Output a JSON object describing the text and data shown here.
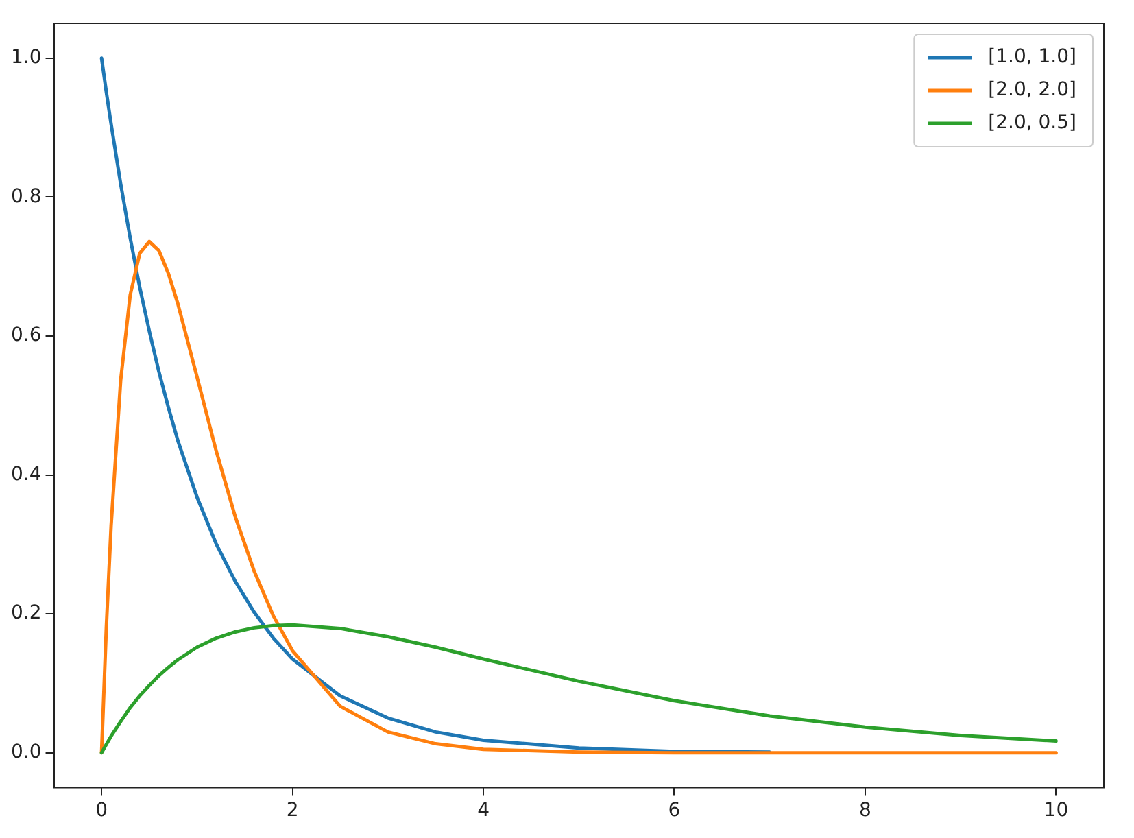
{
  "chart_data": {
    "type": "line",
    "x": [
      0,
      0.05,
      0.1,
      0.2,
      0.3,
      0.4,
      0.5,
      0.6,
      0.7,
      0.8,
      1,
      1.2,
      1.4,
      1.6,
      1.8,
      2,
      2.5,
      3,
      3.5,
      4,
      5,
      6,
      7,
      8,
      9,
      10
    ],
    "series": [
      {
        "name": "[1.0, 1.0]",
        "color": "#1f77b4",
        "values": [
          1,
          0.951,
          0.905,
          0.819,
          0.741,
          0.67,
          0.607,
          0.549,
          0.497,
          0.449,
          0.368,
          0.301,
          0.247,
          0.202,
          0.165,
          0.135,
          0.082,
          0.05,
          0.03,
          0.018,
          0.007,
          0.002,
          0.001,
          null,
          null,
          null
        ]
      },
      {
        "name": "[2.0, 2.0]",
        "color": "#ff7f0e",
        "values": [
          0,
          0.181,
          0.327,
          0.536,
          0.659,
          0.719,
          0.736,
          0.723,
          0.69,
          0.646,
          0.541,
          0.435,
          0.34,
          0.261,
          0.197,
          0.147,
          0.067,
          0.03,
          0.013,
          0.005,
          0.001,
          0,
          0,
          0,
          0,
          0
        ]
      },
      {
        "name": "[2.0, 0.5]",
        "color": "#2ca02c",
        "values": [
          0,
          0.012,
          0.024,
          0.045,
          0.065,
          0.082,
          0.097,
          0.111,
          0.123,
          0.134,
          0.152,
          0.165,
          0.174,
          0.18,
          0.183,
          0.184,
          0.179,
          0.167,
          0.152,
          0.135,
          0.103,
          0.075,
          0.053,
          0.037,
          0.025,
          0.017
        ]
      }
    ],
    "xlim": [
      -0.5,
      10.5
    ],
    "xticks": [
      0,
      2,
      4,
      6,
      8,
      10
    ],
    "ylim": [
      -0.05,
      1.05
    ],
    "yticks": [
      {
        "value": 0,
        "label": "0.0"
      },
      {
        "value": 0.2,
        "label": "0.2"
      },
      {
        "value": 0.4,
        "label": "0.4"
      },
      {
        "value": 0.6,
        "label": "0.6"
      },
      {
        "value": 0.8,
        "label": "0.8"
      },
      {
        "value": 1,
        "label": "1.0"
      }
    ],
    "legend": "top right",
    "grid": false,
    "marker": "none",
    "line_style": "solid"
  }
}
